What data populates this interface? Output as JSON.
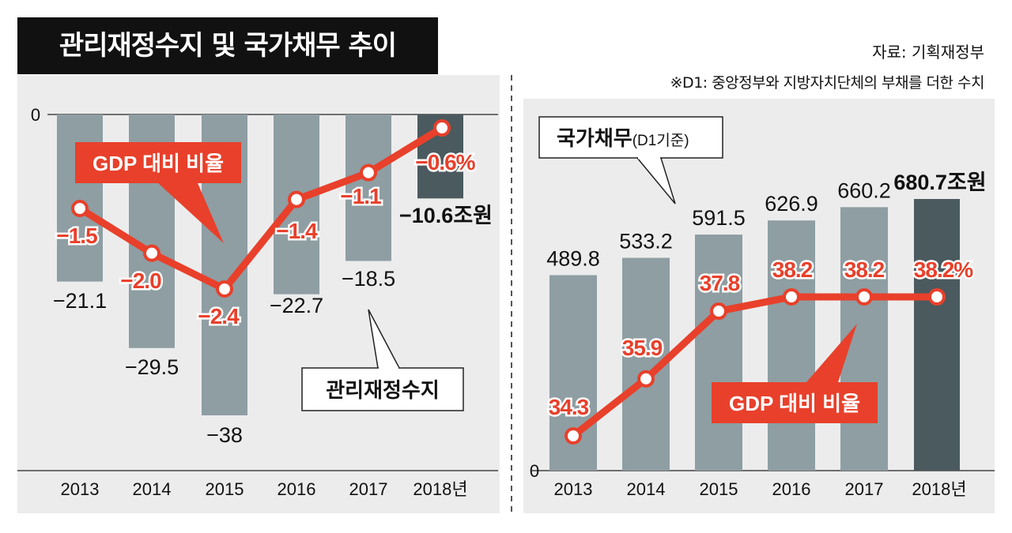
{
  "title": "관리재정수지 및 국가채무 추이",
  "source": "자료: 기획재정부",
  "note": "※D1: 중앙정부와 지방자치단체의 부채를 더한 수치",
  "colors": {
    "panel_bg": "#ececec",
    "bar": "#8e9ea3",
    "bar_last": "#4a5a5e",
    "line": "#e8402b",
    "text": "#111111"
  },
  "chart_data": [
    {
      "type": "bar",
      "categories": [
        "2013",
        "2014",
        "2015",
        "2016",
        "2017",
        "2018년"
      ],
      "zero_label": "0",
      "ylim": [
        -40,
        0
      ],
      "series": [
        {
          "name": "관리재정수지",
          "values": [
            -21.1,
            -29.5,
            -38,
            -22.7,
            -18.5,
            -10.6
          ],
          "labels": [
            "−21.1",
            "−29.5",
            "−38",
            "−22.7",
            "−18.5",
            "−10.6조원"
          ]
        },
        {
          "name": "GDP 대비 비율",
          "type": "line",
          "values": [
            -1.5,
            -2.0,
            -2.4,
            -1.4,
            -1.1,
            -0.6
          ],
          "labels": [
            "−1.5",
            "−2.0",
            "−2.4",
            "−1.4",
            "−1.1",
            "−0.6%"
          ],
          "ylim": [
            -2.6,
            -0.2
          ]
        }
      ]
    },
    {
      "type": "bar",
      "categories": [
        "2013",
        "2014",
        "2015",
        "2016",
        "2017",
        "2018년"
      ],
      "zero_label": "0",
      "ylim": [
        0,
        760
      ],
      "series": [
        {
          "name": "국가채무",
          "name_suffix": "(D1기준)",
          "values": [
            489.8,
            533.2,
            591.5,
            626.9,
            660.2,
            680.7
          ],
          "labels": [
            "489.8",
            "533.2",
            "591.5",
            "626.9",
            "660.2",
            "680.7조원"
          ]
        },
        {
          "name": "GDP 대비 비율",
          "type": "line",
          "values": [
            34.3,
            35.9,
            37.8,
            38.2,
            38.2,
            38.2
          ],
          "labels": [
            "34.3",
            "35.9",
            "37.8",
            "38.2",
            "38.2",
            "38.2%"
          ],
          "ylim": [
            33.8,
            41.4
          ]
        }
      ]
    }
  ]
}
